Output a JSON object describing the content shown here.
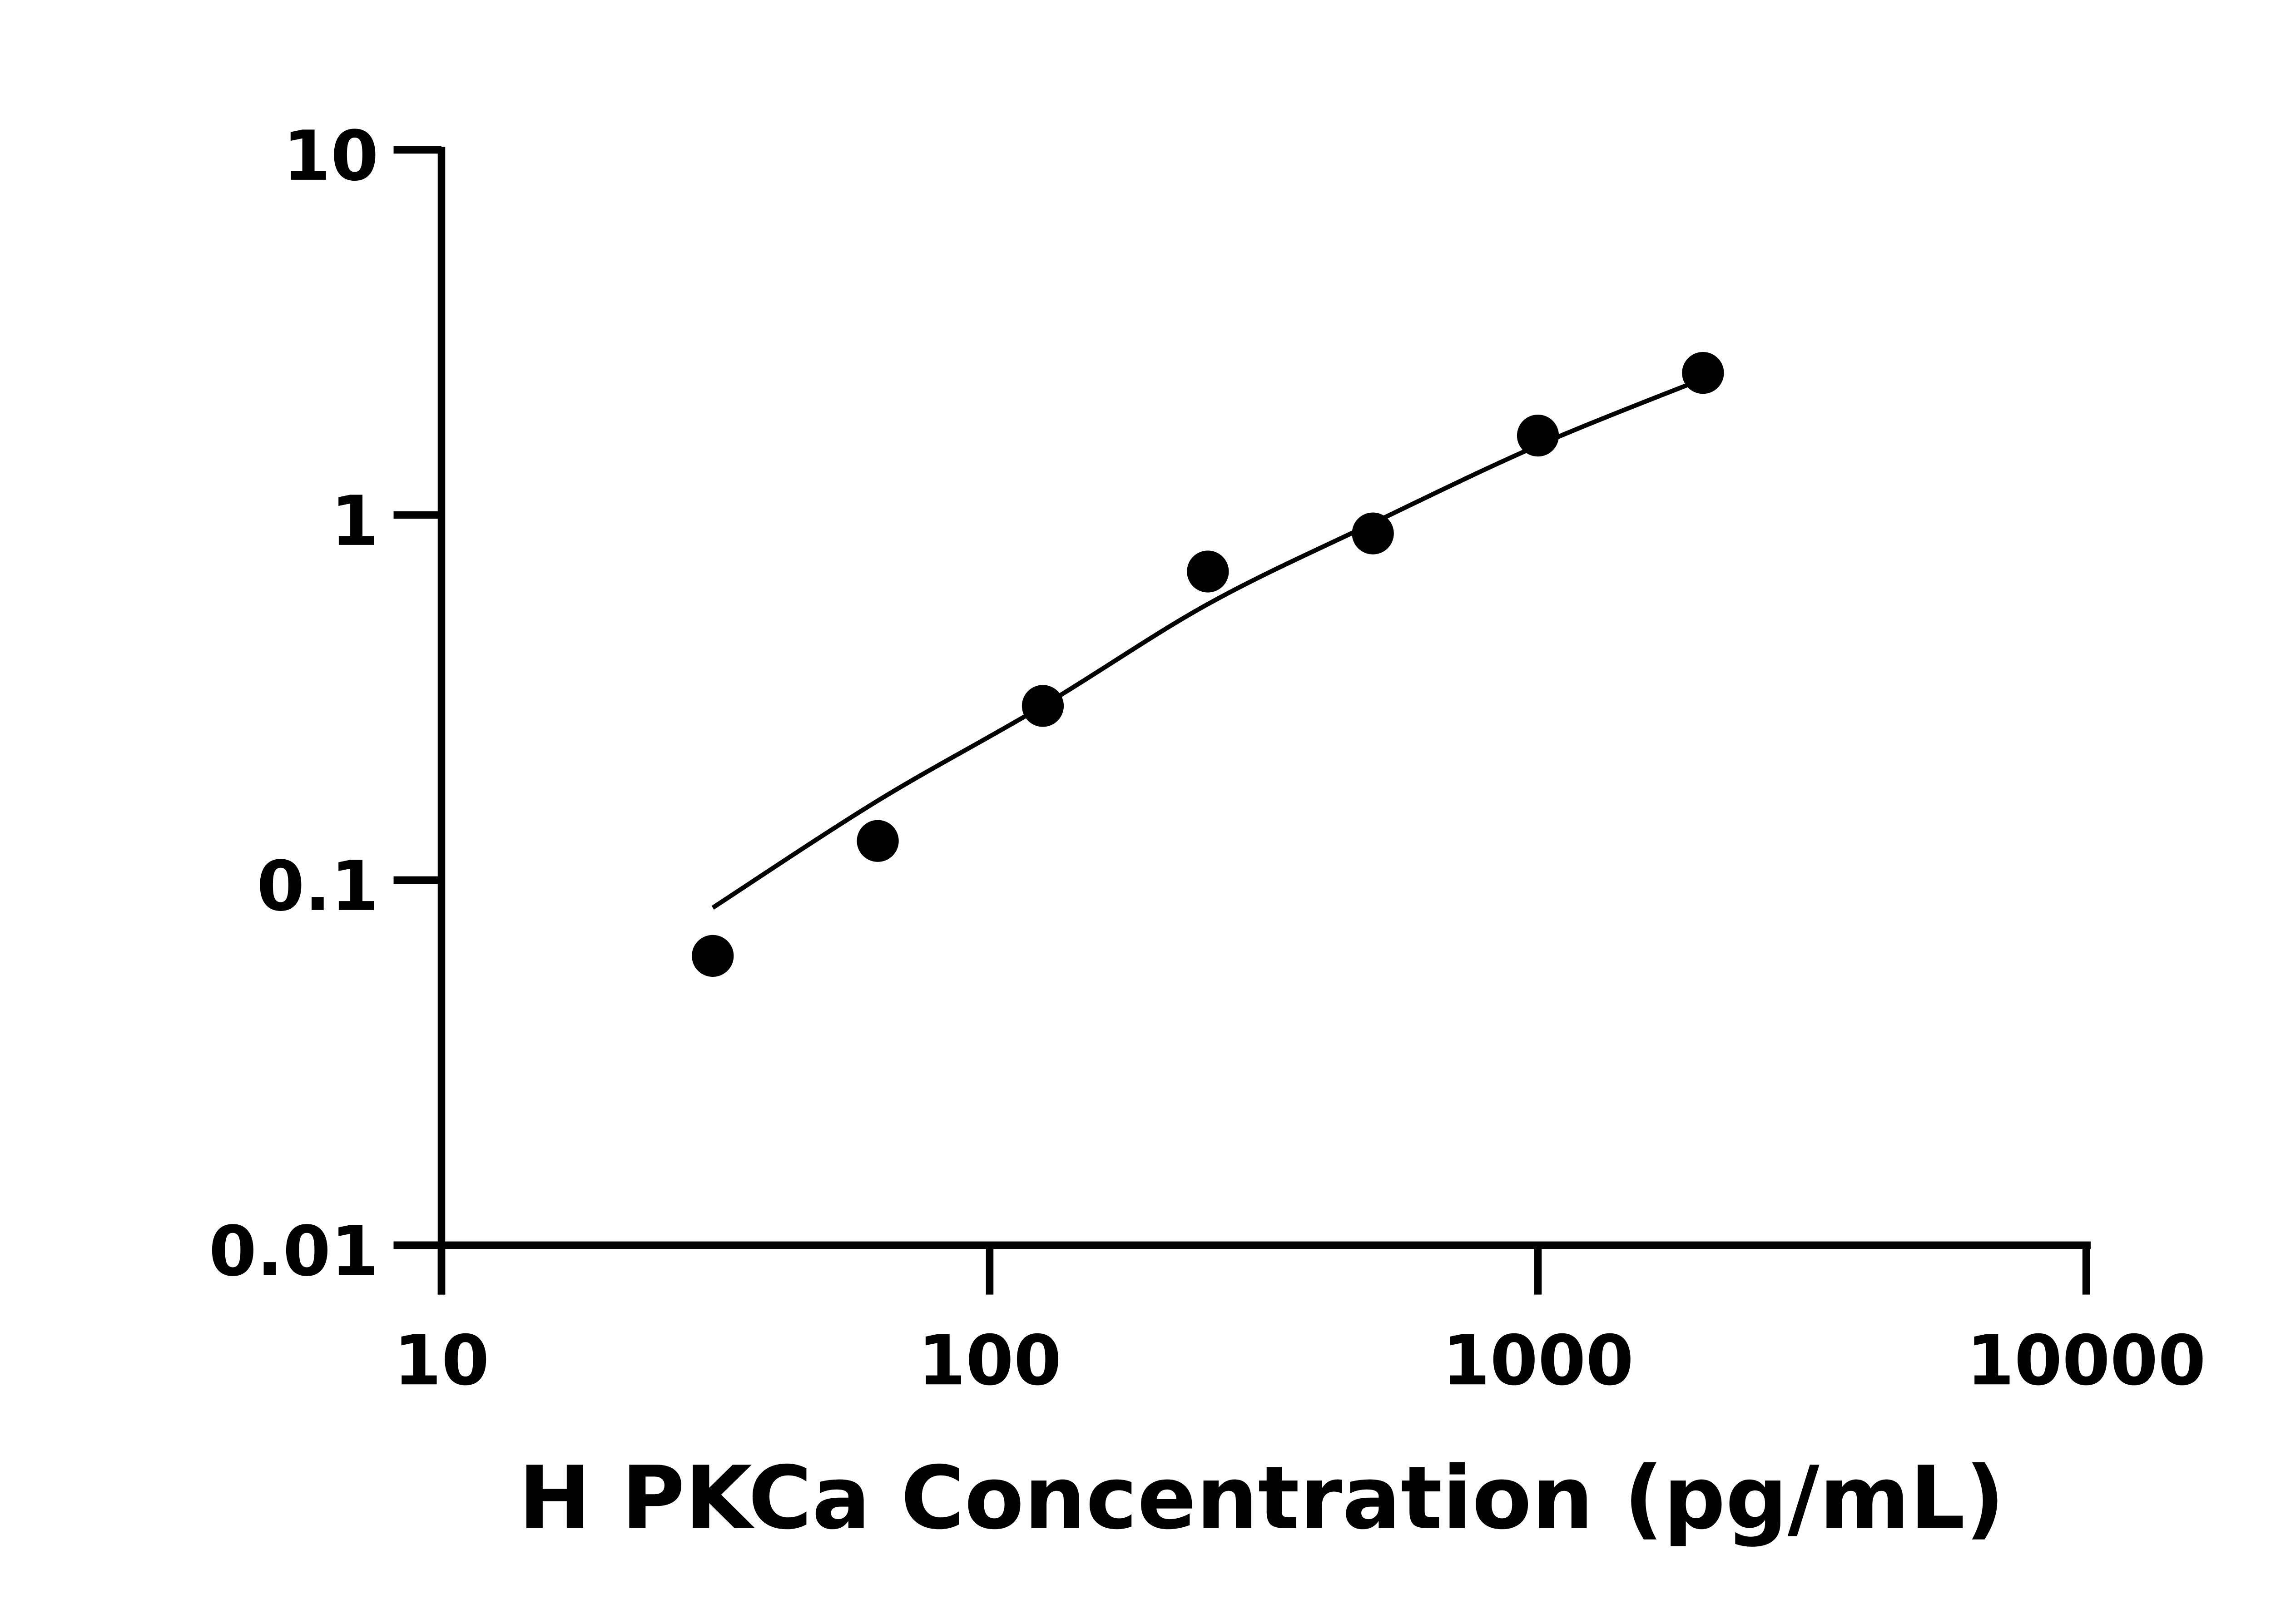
{
  "chart_data": {
    "type": "scatter",
    "title": "",
    "xlabel": "H PKCa Concentration (pg/mL)",
    "ylabel": "",
    "x_scale": "log",
    "y_scale": "log",
    "xlim": [
      10,
      10000
    ],
    "ylim": [
      0.01,
      10
    ],
    "x_ticks": [
      "10",
      "100",
      "1000",
      "10000"
    ],
    "y_ticks": [
      "0.01",
      "0.1",
      "1",
      "10"
    ],
    "grid": false,
    "legend": "none",
    "marker_color": "#000000",
    "points": {
      "x": [
        31.25,
        62.5,
        125,
        250,
        500,
        1000,
        2000
      ],
      "y": [
        0.062,
        0.128,
        0.3,
        0.7,
        0.89,
        1.65,
        2.45
      ]
    },
    "fit_curve": {
      "x": [
        31.25,
        62.5,
        125,
        250,
        500,
        1000,
        2000
      ],
      "y": [
        0.084,
        0.165,
        0.3,
        0.57,
        0.95,
        1.55,
        2.36
      ]
    }
  }
}
